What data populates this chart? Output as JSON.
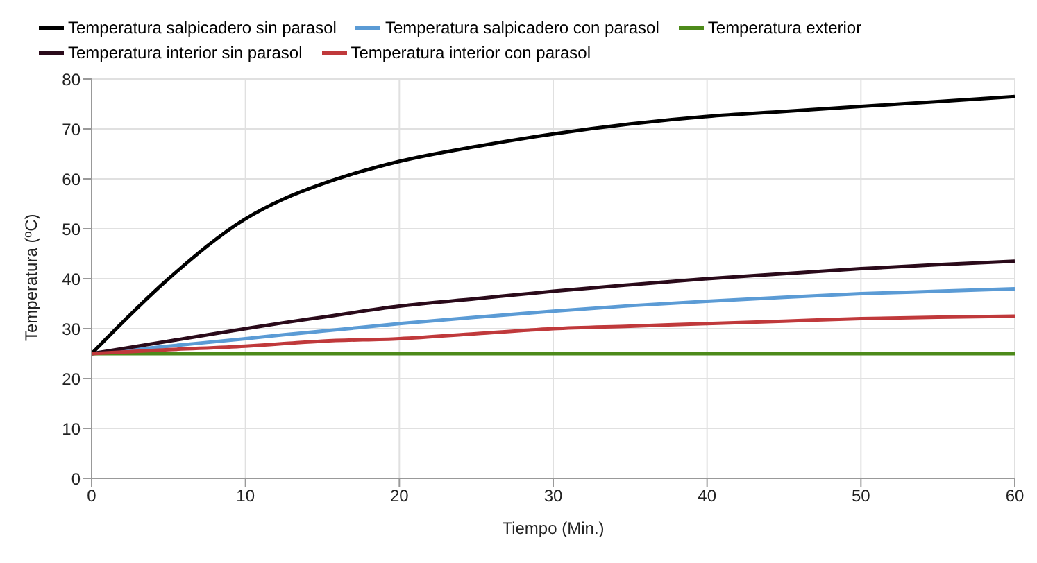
{
  "chart_data": {
    "type": "line",
    "xlabel": "Tiempo (Min.)",
    "ylabel": "Temperatura (ºC)",
    "x": [
      0,
      5,
      10,
      12.5,
      15,
      20,
      25,
      30,
      35,
      40,
      45,
      50,
      55,
      60
    ],
    "series": [
      {
        "name": "Temperatura salpicadero sin parasol",
        "color": "#000000",
        "values": [
          25,
          40,
          52,
          56,
          59,
          63.5,
          66.5,
          69,
          71,
          72.5,
          73.5,
          74.5,
          75.5,
          76.5
        ]
      },
      {
        "name": "Temperatura salpicadero con parasol",
        "color": "#5b9bd5",
        "values": [
          25,
          26.5,
          28,
          28.8,
          29.5,
          31,
          32.3,
          33.5,
          34.6,
          35.5,
          36.3,
          37,
          37.5,
          38
        ]
      },
      {
        "name": "Temperatura exterior",
        "color": "#4d8a1a",
        "values": [
          25,
          25,
          25,
          25,
          25,
          25,
          25,
          25,
          25,
          25,
          25,
          25,
          25,
          25
        ]
      },
      {
        "name": "Temperatura interior sin parasol",
        "color": "#2a0a1a",
        "values": [
          25,
          27.5,
          30,
          31.2,
          32.3,
          34.5,
          36,
          37.5,
          38.8,
          40,
          41,
          42,
          42.8,
          43.5
        ]
      },
      {
        "name": "Temperatura interior con parasol",
        "color": "#c0393b",
        "values": [
          25,
          25.8,
          26.5,
          27,
          27.5,
          28,
          29,
          30,
          30.5,
          31,
          31.5,
          32,
          32.3,
          32.5
        ]
      }
    ],
    "xlim": [
      0,
      60
    ],
    "xticks": [
      0,
      10,
      20,
      30,
      40,
      50,
      60
    ],
    "ylim": [
      0,
      80
    ],
    "yticks": [
      0,
      10,
      20,
      30,
      40,
      50,
      60,
      70,
      80
    ],
    "grid": true,
    "legend": "top",
    "marker": "none",
    "line_style": "solid"
  }
}
